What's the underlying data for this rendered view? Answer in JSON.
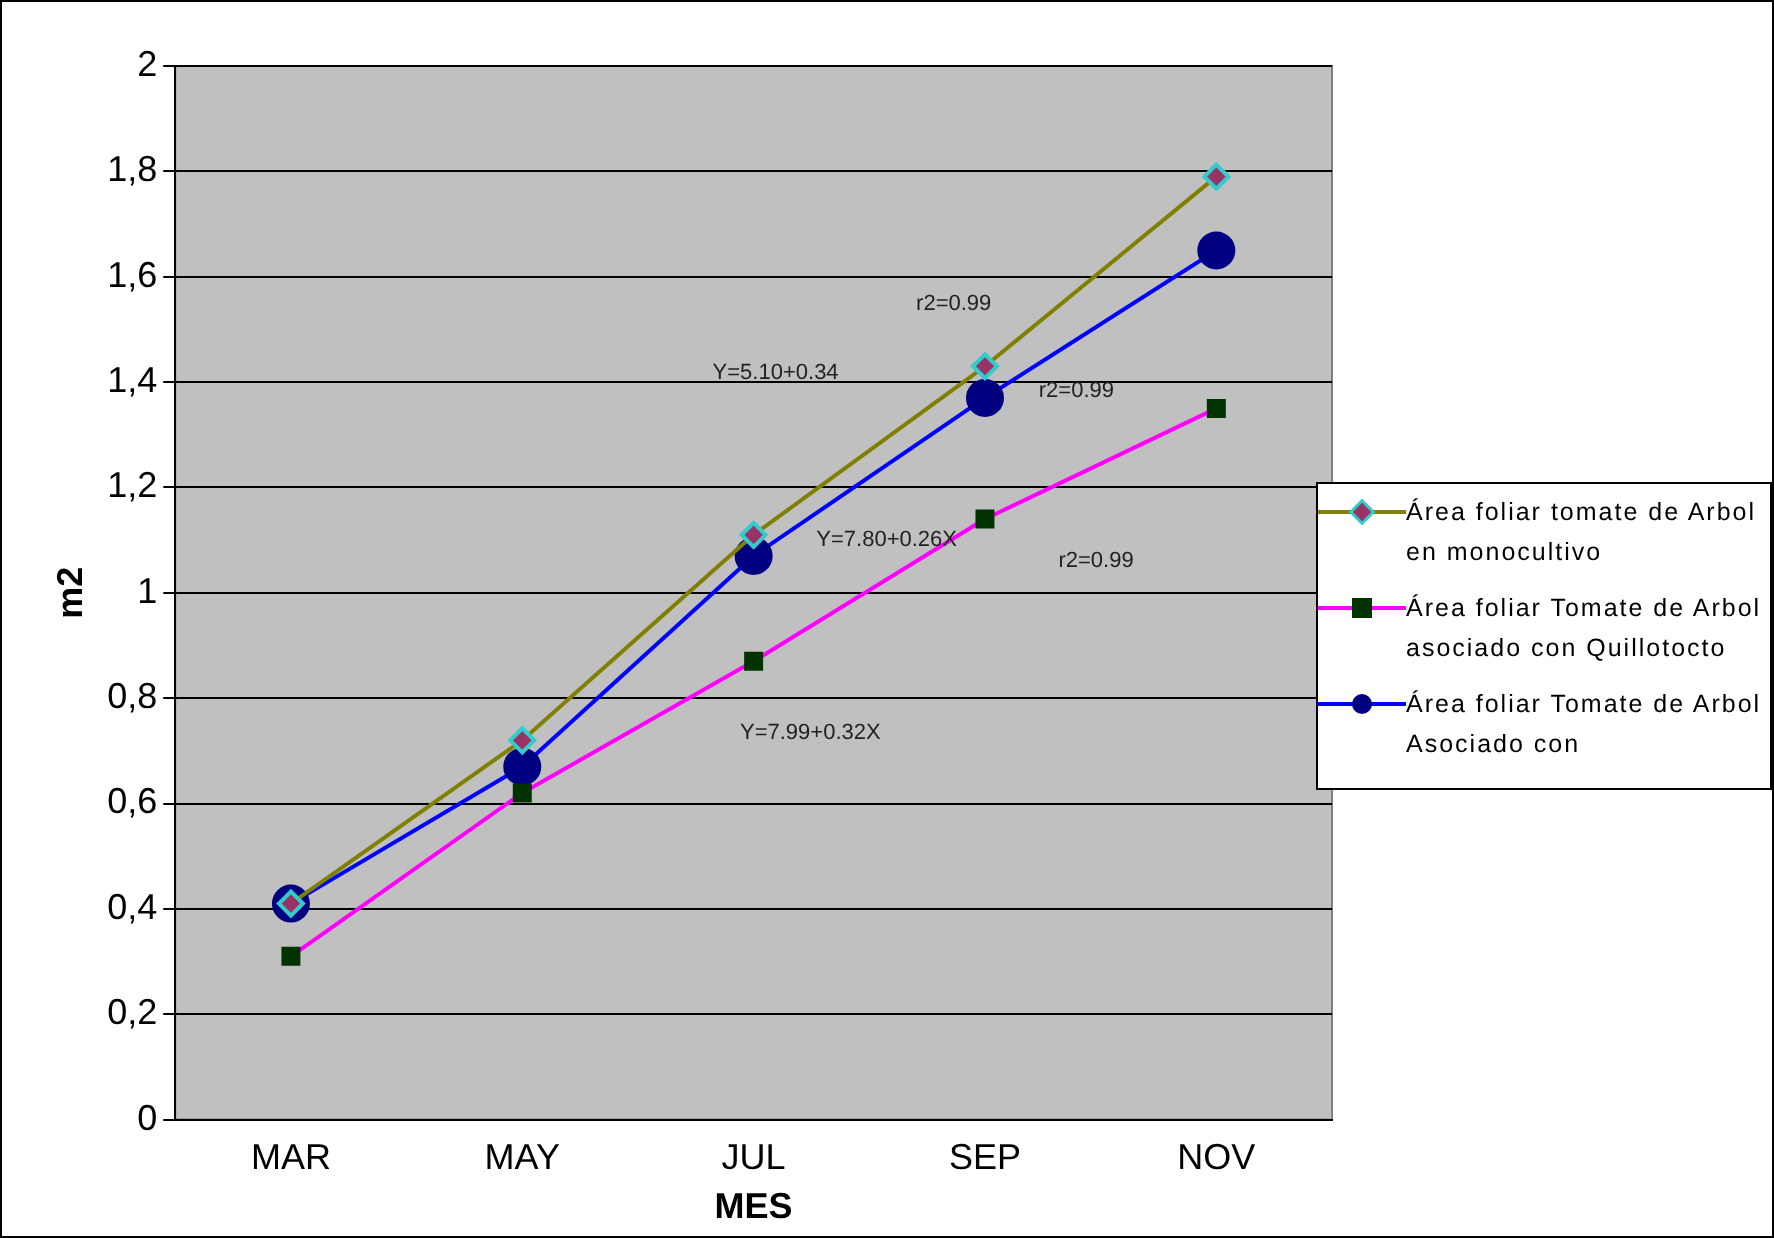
{
  "chart_data": {
    "type": "line",
    "xlabel": "MES",
    "ylabel": "m2",
    "categories": [
      "MAR",
      "MAY",
      "JUL",
      "SEP",
      "NOV"
    ],
    "series": [
      {
        "name": "Área foliar tomate de Arbol en monocultivo",
        "color": "#808000",
        "colors": [
          "#993366",
          "#993366",
          "#993366",
          "#993366",
          "#993366"
        ],
        "marker": "diamond",
        "values": [
          0.41,
          0.72,
          1.11,
          1.43,
          1.79
        ]
      },
      {
        "name": "Área foliar Tomate de Arbol asociado con Quillotocto",
        "color": "#ff00ff",
        "colors": [
          "#003300",
          "#003300",
          "#003300",
          "#003300",
          "#003300"
        ],
        "marker": "square",
        "values": [
          0.31,
          0.62,
          0.87,
          1.14,
          1.35
        ]
      },
      {
        "name": "Área foliar Tomate de Arbol Asociado con",
        "color": "#0000ff",
        "colors": [
          "#000080",
          "#000080",
          "#000080",
          "#000080",
          "#000080"
        ],
        "marker": "circle",
        "values": [
          0.41,
          0.67,
          1.07,
          1.37,
          1.65
        ]
      }
    ],
    "ylim": [
      0,
      2
    ],
    "yticks": [
      0,
      {
        "value": 0.2,
        "label": "0,2"
      },
      {
        "value": 0.4,
        "label": "0,4"
      },
      {
        "value": 0.6,
        "label": "0,6"
      },
      {
        "value": 0.8,
        "label": "0,8"
      },
      1,
      {
        "value": 1.2,
        "label": "1,2"
      },
      {
        "value": 1.4,
        "label": "1,4"
      },
      {
        "value": 1.6,
        "label": "1,6"
      },
      {
        "value": 1.8,
        "label": "1,8"
      },
      2
    ],
    "grid": "y",
    "legend": "right",
    "annotations": [
      "r2=0.99",
      "Y=5.10+0.34",
      "r2=0.99",
      "Y=7.80+0.26X",
      "r2=0.99",
      "Y=7.99+0.32X"
    ]
  }
}
